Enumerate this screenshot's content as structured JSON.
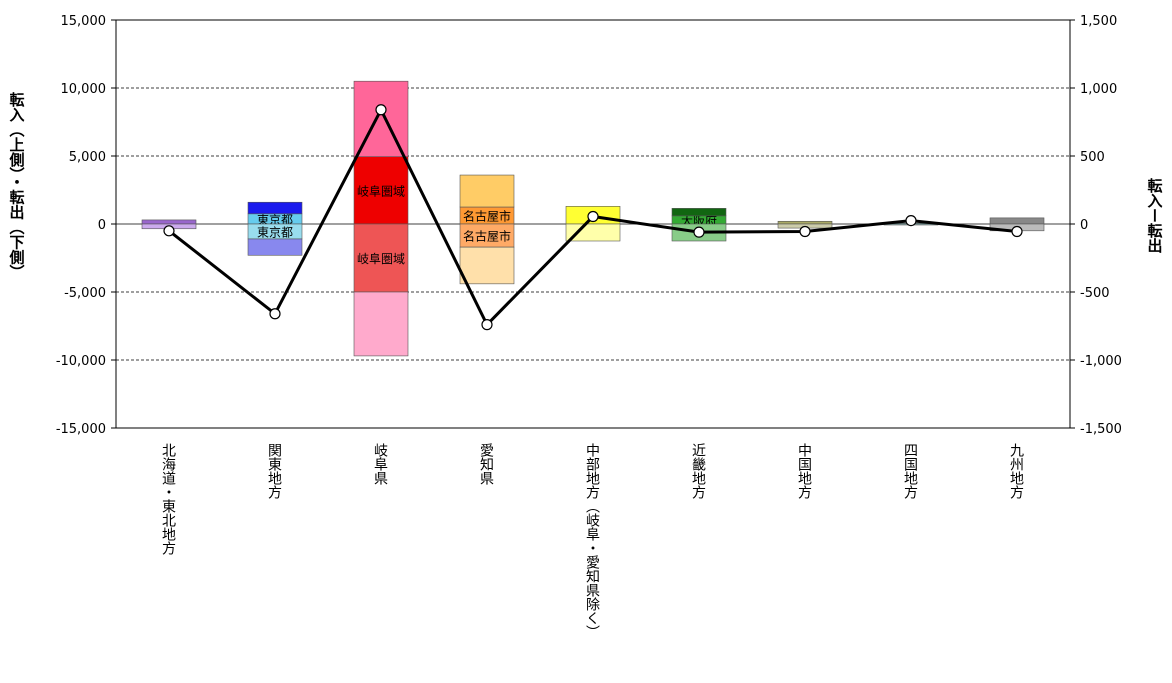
{
  "chart_data": {
    "type": "bar",
    "title": "",
    "ylabel_left": "転入（上側）・転出（下側）",
    "ylabel_right": "転入ー転出",
    "ylim_left": [
      -15000,
      15000
    ],
    "ylim_right": [
      -1500,
      1500
    ],
    "yticks_left": [
      "15,000",
      "10,000",
      "5,000",
      "0",
      "-5,000",
      "-10,000",
      "-15,000"
    ],
    "yticks_right": [
      "1,500",
      "1,000",
      "500",
      "0",
      "-500",
      "-1,000",
      "-1,500"
    ],
    "grid": "dashed-horizontal",
    "categories": [
      "北海道・東北地方",
      "関東地方",
      "岐阜県",
      "愛知県",
      "中部地方（岐阜・愛知県除く）",
      "近畿地方",
      "中国地方",
      "四国地方",
      "九州地方"
    ],
    "colors": [
      "#9966cc",
      "#3333cc",
      "#ff6699",
      "#ffcc66",
      "#ffff66",
      "#339933",
      "#999966",
      "#66cccc",
      "#888888"
    ],
    "series": [
      {
        "name": "転入",
        "values": [
          300,
          1600,
          10500,
          3600,
          1300,
          1150,
          200,
          50,
          450
        ]
      },
      {
        "name": "転出",
        "values": [
          -350,
          -2300,
          -9700,
          -4400,
          -1250,
          -1250,
          -300,
          -50,
          -500
        ]
      },
      {
        "name": "転入ー転出",
        "axis": "right",
        "values": [
          -50,
          -660,
          840,
          -740,
          55,
          -60,
          -55,
          25,
          -55
        ]
      }
    ],
    "segments": {
      "転入": [
        [
          {
            "value": 300,
            "color": "#9966cc"
          }
        ],
        [
          {
            "value": 750,
            "color": "#66ccee",
            "label": "東京都"
          },
          {
            "value": 850,
            "color": "#1a1aee"
          }
        ],
        [
          {
            "value": 4950,
            "color": "#ee0000",
            "label": "岐阜圏域"
          },
          {
            "value": 5550,
            "color": "#ff6699"
          }
        ],
        [
          {
            "value": 1250,
            "color": "#ff9933",
            "label": "名古屋市"
          },
          {
            "value": 2350,
            "color": "#ffcc66"
          }
        ],
        [
          {
            "value": 1300,
            "color": "#ffff33"
          }
        ],
        [
          {
            "value": 600,
            "color": "#33aa33",
            "label": "大阪府"
          },
          {
            "value": 550,
            "color": "#116611"
          }
        ],
        [
          {
            "value": 200,
            "color": "#aaaa66"
          }
        ],
        [
          {
            "value": 50,
            "color": "#66cccc"
          }
        ],
        [
          {
            "value": 450,
            "color": "#888888"
          }
        ]
      ],
      "転出": [
        [
          {
            "value": -350,
            "color": "#ccaaee"
          }
        ],
        [
          {
            "value": -1100,
            "color": "#99ddee",
            "label": "東京都"
          },
          {
            "value": -1200,
            "color": "#8888ee"
          }
        ],
        [
          {
            "value": -5000,
            "color": "#ee5555",
            "label": "岐阜圏域"
          },
          {
            "value": -4700,
            "color": "#ffaacc"
          }
        ],
        [
          {
            "value": -1700,
            "color": "#ffaa66",
            "label": "名古屋市"
          },
          {
            "value": -2700,
            "color": "#ffe0aa"
          }
        ],
        [
          {
            "value": -1250,
            "color": "#ffffaa"
          }
        ],
        [
          {
            "value": -1250,
            "color": "#88cc88"
          }
        ],
        [
          {
            "value": -300,
            "color": "#ccccaa"
          }
        ],
        [
          {
            "value": -50,
            "color": "#aadddd"
          }
        ],
        [
          {
            "value": -500,
            "color": "#bbbbbb"
          }
        ]
      ]
    }
  }
}
